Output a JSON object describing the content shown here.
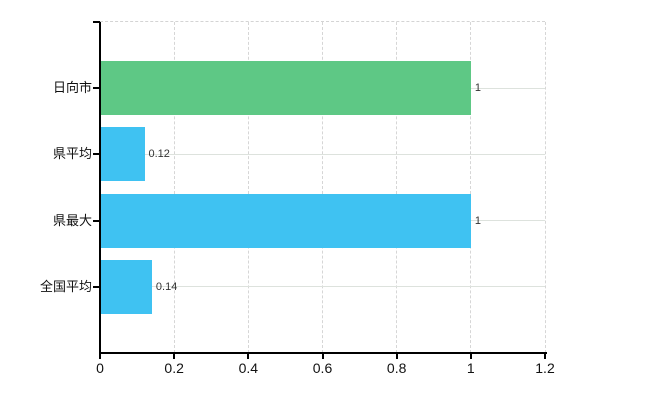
{
  "chart_data": {
    "type": "bar",
    "orientation": "horizontal",
    "title": "",
    "categories": [
      "日向市",
      "県平均",
      "県最大",
      "全国平均"
    ],
    "values": [
      1,
      0.12,
      1,
      0.14
    ],
    "value_labels": [
      "1",
      "0.12",
      "1",
      "0.14"
    ],
    "bar_colors": [
      "#5ec885",
      "#3fc2f2",
      "#3fc2f2",
      "#3fc2f2"
    ],
    "x_tick_labels": [
      "0",
      "0.2",
      "0.4",
      "0.6",
      "0.8",
      "1",
      "1.2"
    ],
    "x_tick_values": [
      0,
      0.2,
      0.4,
      0.6,
      0.8,
      1,
      1.2
    ],
    "xlabel": "",
    "ylabel": "",
    "xlim": [
      0,
      1.2
    ],
    "legend": "none",
    "grid": {
      "vertical": "dashed",
      "horizontal": "solid"
    },
    "colors": {
      "green_bar": "#5ec885",
      "blue_bar": "#3fc2f2",
      "axis": "#000000",
      "grid_vertical": "#d6d6d6",
      "grid_horizontal": "#dde2dd",
      "label_text": "#111111",
      "value_text": "#333333",
      "background": "#ffffff"
    }
  }
}
